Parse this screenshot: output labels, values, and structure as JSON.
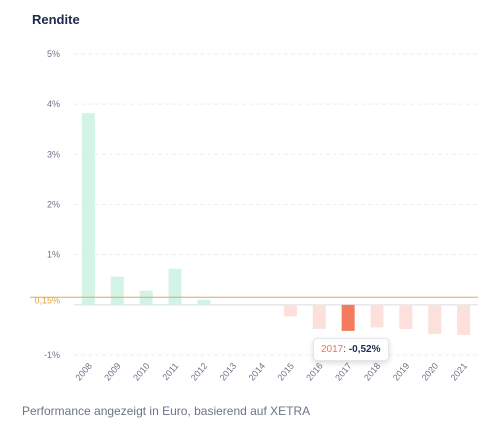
{
  "chart_data": {
    "type": "bar",
    "title": "Rendite",
    "categories": [
      "2008",
      "2009",
      "2010",
      "2011",
      "2012",
      "2013",
      "2014",
      "2015",
      "2016",
      "2017",
      "2018",
      "2019",
      "2020",
      "2021"
    ],
    "values": [
      3.82,
      0.56,
      0.28,
      0.72,
      0.1,
      0,
      0,
      -0.23,
      -0.48,
      -0.52,
      -0.45,
      -0.48,
      -0.58,
      -0.6
    ],
    "ylim": [
      -1,
      5
    ],
    "yticks": [
      5,
      4,
      3,
      2,
      1,
      0,
      -1
    ],
    "ytick_labels": [
      "5%",
      "4%",
      "3%",
      "2%",
      "1%",
      "",
      "-1%"
    ],
    "average": {
      "value": 0.15,
      "label": "0,15%",
      "color": "#d7b04a"
    },
    "grid": true,
    "colors": {
      "positive": "#d3f3e7",
      "negative": "#fde0db",
      "highlight": "#f47b5e"
    },
    "highlight_index": 9
  },
  "tooltip": {
    "year": "2017",
    "separator": ": ",
    "value": "-0,52%"
  },
  "footnote": "Performance angezeigt in Euro, basierend auf XETRA"
}
